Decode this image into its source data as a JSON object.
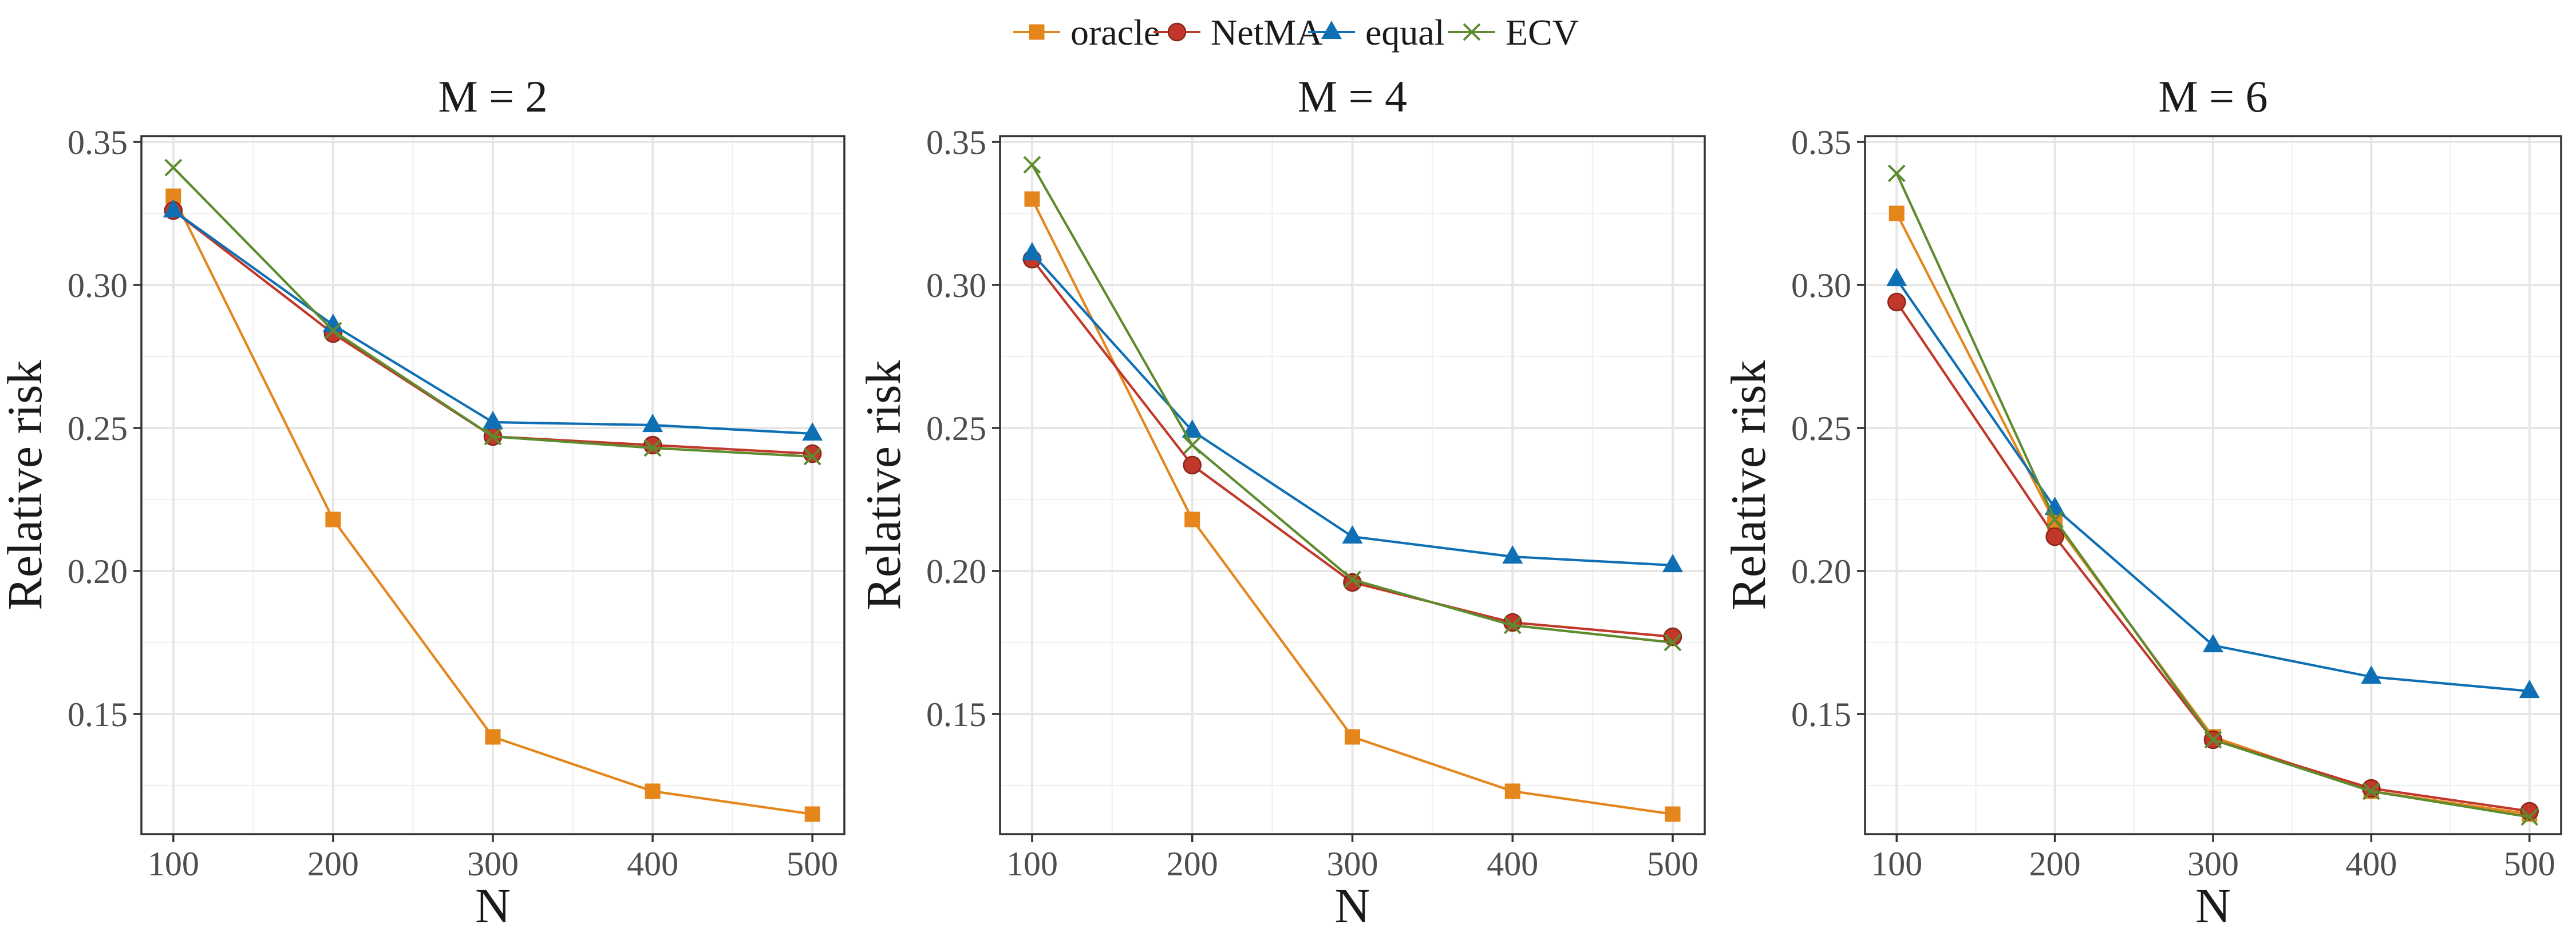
{
  "chart_data": {
    "type": "line",
    "legend": {
      "placement": "top-center",
      "entries": [
        {
          "name": "oracle",
          "color": "#E4861C",
          "marker": "square"
        },
        {
          "name": "NetMA",
          "color": "#C1382A",
          "marker": "circle"
        },
        {
          "name": "equal",
          "color": "#0F6FB4",
          "marker": "triangle"
        },
        {
          "name": "ECV",
          "color": "#5E8B2E",
          "marker": "cross"
        }
      ]
    },
    "shared": {
      "xlabel": "N",
      "ylabel": "Relative risk",
      "x": [
        100,
        200,
        300,
        400,
        500
      ],
      "xlim": [
        80,
        520
      ],
      "ylim": [
        0.108,
        0.352
      ],
      "xticks": [
        100,
        200,
        300,
        400,
        500
      ],
      "xtick_labels": [
        "100",
        "200",
        "300",
        "400",
        "500"
      ],
      "yticks": [
        0.15,
        0.2,
        0.25,
        0.3,
        0.35
      ],
      "ytick_labels": [
        "0.15",
        "0.20",
        "0.25",
        "0.30",
        "0.35"
      ],
      "grid": true
    },
    "panels": [
      {
        "title": "M = 2",
        "series": [
          {
            "name": "oracle",
            "values": [
              0.331,
              0.218,
              0.142,
              0.123,
              0.115
            ]
          },
          {
            "name": "NetMA",
            "values": [
              0.326,
              0.283,
              0.247,
              0.244,
              0.241
            ]
          },
          {
            "name": "equal",
            "values": [
              0.326,
              0.286,
              0.252,
              0.251,
              0.248
            ]
          },
          {
            "name": "ECV",
            "values": [
              0.341,
              0.284,
              0.247,
              0.243,
              0.24
            ]
          }
        ]
      },
      {
        "title": "M = 4",
        "series": [
          {
            "name": "oracle",
            "values": [
              0.33,
              0.218,
              0.142,
              0.123,
              0.115
            ]
          },
          {
            "name": "NetMA",
            "values": [
              0.309,
              0.237,
              0.196,
              0.182,
              0.177
            ]
          },
          {
            "name": "equal",
            "values": [
              0.311,
              0.249,
              0.212,
              0.205,
              0.202
            ]
          },
          {
            "name": "ECV",
            "values": [
              0.342,
              0.244,
              0.197,
              0.181,
              0.175
            ]
          }
        ]
      },
      {
        "title": "M = 6",
        "series": [
          {
            "name": "oracle",
            "values": [
              0.325,
              0.217,
              0.142,
              0.123,
              0.115
            ]
          },
          {
            "name": "NetMA",
            "values": [
              0.294,
              0.212,
              0.141,
              0.124,
              0.116
            ]
          },
          {
            "name": "equal",
            "values": [
              0.302,
              0.222,
              0.174,
              0.163,
              0.158
            ]
          },
          {
            "name": "ECV",
            "values": [
              0.339,
              0.218,
              0.141,
              0.123,
              0.114
            ]
          }
        ]
      }
    ]
  }
}
